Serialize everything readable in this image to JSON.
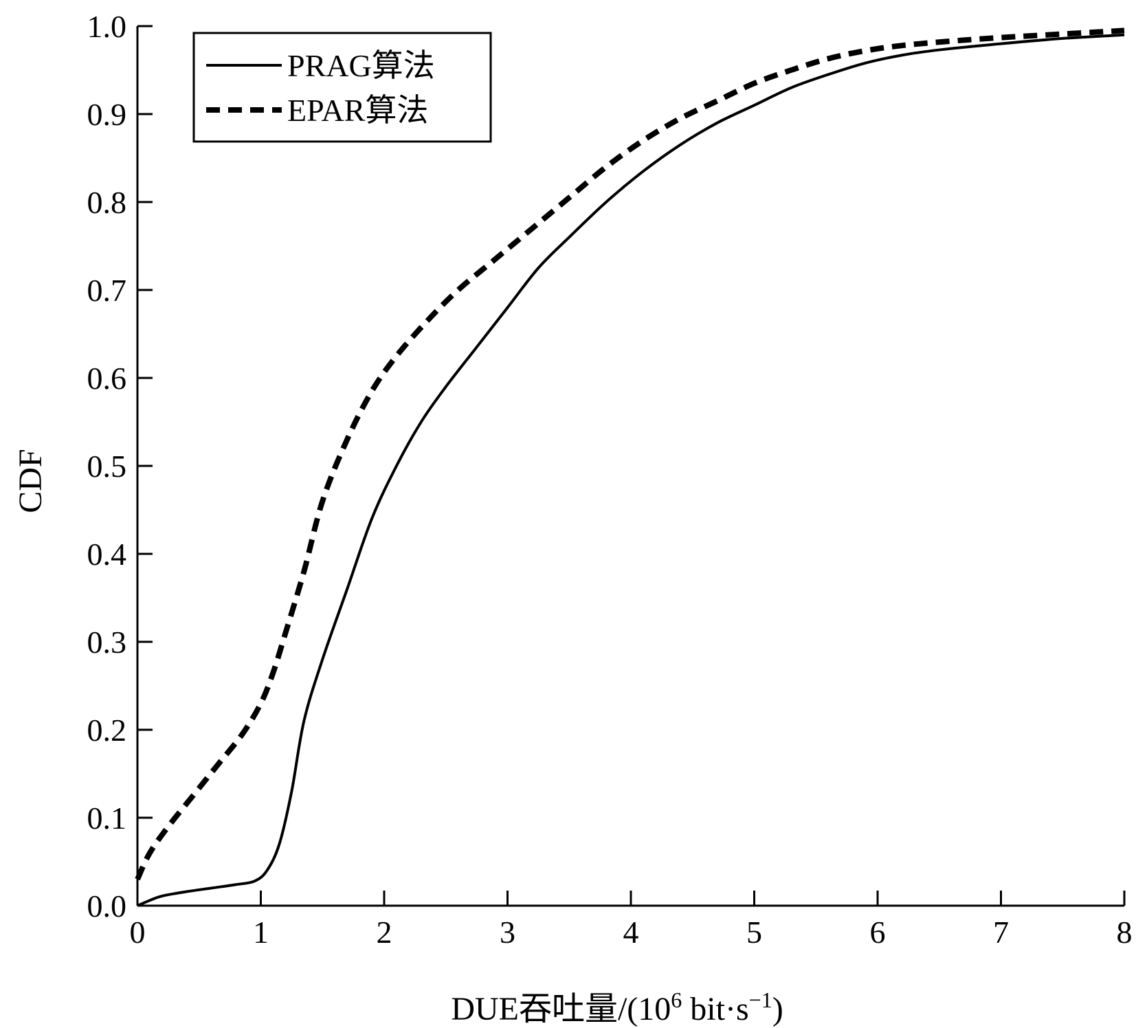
{
  "chart_data": {
    "type": "line",
    "title": "",
    "xlabel": "DUE吞吐量/(10",
    "xlabel_sup": "6",
    "xlabel_mid": " bit·s",
    "xlabel_sup2": "−1",
    "xlabel_end": ")",
    "ylabel": "CDF",
    "xlim": [
      0,
      8
    ],
    "ylim": [
      0,
      1
    ],
    "xticks": [
      0,
      1,
      2,
      3,
      4,
      5,
      6,
      7,
      8
    ],
    "yticks": [
      0.0,
      0.1,
      0.2,
      0.3,
      0.4,
      0.5,
      0.6,
      0.7,
      0.8,
      0.9,
      1.0
    ],
    "ytick_labels": [
      "0.0",
      "0.1",
      "0.2",
      "0.3",
      "0.4",
      "0.5",
      "0.6",
      "0.7",
      "0.8",
      "0.9",
      "1.0"
    ],
    "xtick_labels": [
      "0",
      "1",
      "2",
      "3",
      "4",
      "5",
      "6",
      "7",
      "8"
    ],
    "grid": false,
    "legend_position": "top-left",
    "series": [
      {
        "name": "PRAG算法",
        "style": "solid",
        "color": "#000000",
        "points": [
          [
            0,
            0.0
          ],
          [
            0.1,
            0.006
          ],
          [
            0.2,
            0.011
          ],
          [
            0.4,
            0.016
          ],
          [
            0.6,
            0.02
          ],
          [
            0.8,
            0.024
          ],
          [
            0.95,
            0.028
          ],
          [
            1.05,
            0.04
          ],
          [
            1.15,
            0.07
          ],
          [
            1.25,
            0.13
          ],
          [
            1.35,
            0.21
          ],
          [
            1.5,
            0.28
          ],
          [
            1.7,
            0.36
          ],
          [
            1.9,
            0.44
          ],
          [
            2.1,
            0.5
          ],
          [
            2.3,
            0.55
          ],
          [
            2.5,
            0.59
          ],
          [
            2.75,
            0.635
          ],
          [
            3.0,
            0.68
          ],
          [
            3.25,
            0.725
          ],
          [
            3.5,
            0.76
          ],
          [
            3.8,
            0.8
          ],
          [
            4.1,
            0.835
          ],
          [
            4.4,
            0.865
          ],
          [
            4.7,
            0.89
          ],
          [
            5.0,
            0.91
          ],
          [
            5.3,
            0.93
          ],
          [
            5.6,
            0.945
          ],
          [
            5.9,
            0.958
          ],
          [
            6.2,
            0.967
          ],
          [
            6.5,
            0.973
          ],
          [
            7.0,
            0.98
          ],
          [
            7.5,
            0.986
          ],
          [
            8.0,
            0.99
          ]
        ]
      },
      {
        "name": "EPAR算法",
        "style": "dashed",
        "color": "#000000",
        "points": [
          [
            0,
            0.03
          ],
          [
            0.1,
            0.06
          ],
          [
            0.25,
            0.09
          ],
          [
            0.45,
            0.125
          ],
          [
            0.65,
            0.16
          ],
          [
            0.85,
            0.195
          ],
          [
            1.0,
            0.23
          ],
          [
            1.1,
            0.265
          ],
          [
            1.2,
            0.31
          ],
          [
            1.35,
            0.38
          ],
          [
            1.5,
            0.46
          ],
          [
            1.7,
            0.53
          ],
          [
            1.9,
            0.585
          ],
          [
            2.1,
            0.625
          ],
          [
            2.35,
            0.665
          ],
          [
            2.6,
            0.7
          ],
          [
            2.9,
            0.735
          ],
          [
            3.2,
            0.77
          ],
          [
            3.5,
            0.805
          ],
          [
            3.8,
            0.84
          ],
          [
            4.1,
            0.87
          ],
          [
            4.4,
            0.895
          ],
          [
            4.7,
            0.915
          ],
          [
            5.0,
            0.935
          ],
          [
            5.3,
            0.95
          ],
          [
            5.6,
            0.963
          ],
          [
            5.9,
            0.972
          ],
          [
            6.2,
            0.978
          ],
          [
            6.6,
            0.983
          ],
          [
            7.0,
            0.987
          ],
          [
            7.5,
            0.991
          ],
          [
            8.0,
            0.995
          ]
        ]
      }
    ]
  }
}
